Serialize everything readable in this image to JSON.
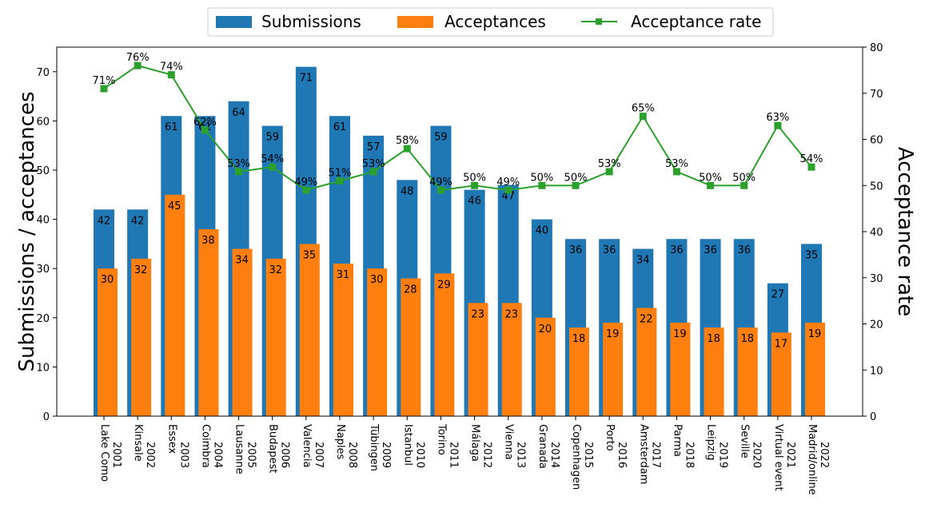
{
  "chart_data": {
    "type": "bar",
    "categories": [
      [
        "2001",
        "Lake Como"
      ],
      [
        "2002",
        "Kinsale"
      ],
      [
        "2003",
        "Essex"
      ],
      [
        "2004",
        "Coimbra"
      ],
      [
        "2005",
        "Lausanne"
      ],
      [
        "2006",
        "Budapest"
      ],
      [
        "2007",
        "Valencia"
      ],
      [
        "2008",
        "Naples"
      ],
      [
        "2009",
        "Tübingen"
      ],
      [
        "2010",
        "Istanbul"
      ],
      [
        "2011",
        "Torino"
      ],
      [
        "2012",
        "Málaga"
      ],
      [
        "2013",
        "Vienna"
      ],
      [
        "2014",
        "Granada"
      ],
      [
        "2015",
        "Copenhagen"
      ],
      [
        "2016",
        "Porto"
      ],
      [
        "2017",
        "Amsterdam"
      ],
      [
        "2018",
        "Parma"
      ],
      [
        "2019",
        "Leipzig"
      ],
      [
        "2020",
        "Seville"
      ],
      [
        "2021",
        "Virtual event"
      ],
      [
        "2022",
        "Madrid/online"
      ]
    ],
    "series": [
      {
        "name": "Submissions",
        "values": [
          42,
          42,
          61,
          61,
          64,
          59,
          71,
          61,
          57,
          48,
          59,
          46,
          47,
          40,
          36,
          36,
          34,
          36,
          36,
          36,
          27,
          35
        ],
        "color": "#1f77b4",
        "axis": "left"
      },
      {
        "name": "Acceptances",
        "values": [
          30,
          32,
          45,
          38,
          34,
          32,
          35,
          31,
          30,
          28,
          29,
          23,
          23,
          20,
          18,
          19,
          22,
          19,
          18,
          18,
          17,
          19
        ],
        "color": "#ff7f0e",
        "axis": "left"
      },
      {
        "name": "Acceptance rate",
        "type": "line",
        "values": [
          71,
          76,
          74,
          62,
          53,
          54,
          49,
          51,
          53,
          58,
          49,
          50,
          49,
          50,
          50,
          53,
          65,
          53,
          50,
          50,
          63,
          54
        ],
        "labels": [
          "71%",
          "76%",
          "74%",
          "62%",
          "53%",
          "54%",
          "49%",
          "51%",
          "53%",
          "58%",
          "49%",
          "50%",
          "49%",
          "50%",
          "50%",
          "53%",
          "65%",
          "53%",
          "50%",
          "50%",
          "63%",
          "54%"
        ],
        "color": "#2ca02c",
        "axis": "right"
      }
    ],
    "ylabel": "Submissions / acceptances",
    "y2label": "Acceptance rate",
    "ylim": [
      0,
      75
    ],
    "yticks": [
      0,
      10,
      20,
      30,
      40,
      50,
      60,
      70
    ],
    "y2lim": [
      0,
      80
    ],
    "y2ticks": [
      0,
      10,
      20,
      30,
      40,
      50,
      60,
      70,
      80
    ],
    "grid": false,
    "legend_position": "top-center"
  }
}
